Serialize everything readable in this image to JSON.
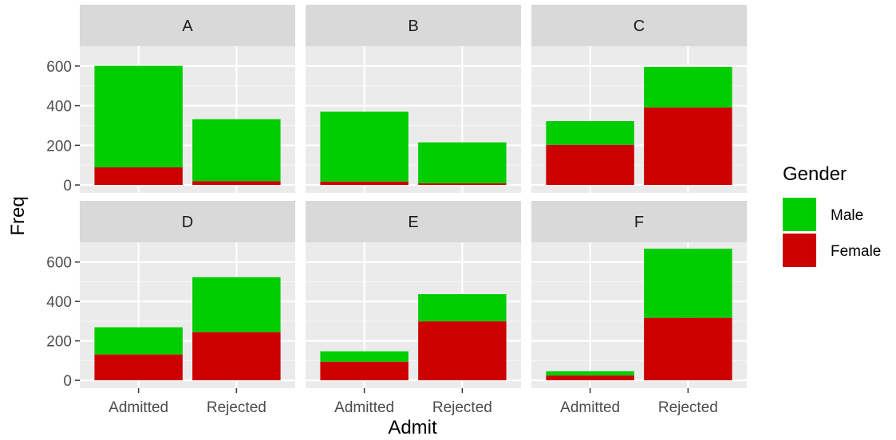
{
  "chart_data": {
    "type": "bar",
    "stacked": true,
    "faceted": true,
    "x_label": "Admit",
    "y_label": "Freq",
    "ylim": [
      -40,
      700
    ],
    "y_ticks": [
      0,
      200,
      400,
      600
    ],
    "categories": [
      "Admitted",
      "Rejected"
    ],
    "grid": true,
    "legend": {
      "title": "Gender",
      "position": "right",
      "entries": [
        {
          "name": "Male",
          "color": "#00cd00"
        },
        {
          "name": "Female",
          "color": "#cd0000"
        }
      ]
    },
    "facets": [
      {
        "name": "A",
        "series": [
          {
            "name": "Female",
            "values": [
              89,
              19
            ]
          },
          {
            "name": "Male",
            "values": [
              512,
              313
            ]
          }
        ]
      },
      {
        "name": "B",
        "series": [
          {
            "name": "Female",
            "values": [
              17,
              8
            ]
          },
          {
            "name": "Male",
            "values": [
              353,
              207
            ]
          }
        ]
      },
      {
        "name": "C",
        "series": [
          {
            "name": "Female",
            "values": [
              202,
              391
            ]
          },
          {
            "name": "Male",
            "values": [
              120,
              205
            ]
          }
        ]
      },
      {
        "name": "D",
        "series": [
          {
            "name": "Female",
            "values": [
              131,
              244
            ]
          },
          {
            "name": "Male",
            "values": [
              138,
              279
            ]
          }
        ]
      },
      {
        "name": "E",
        "series": [
          {
            "name": "Female",
            "values": [
              94,
              299
            ]
          },
          {
            "name": "Male",
            "values": [
              53,
              138
            ]
          }
        ]
      },
      {
        "name": "F",
        "series": [
          {
            "name": "Female",
            "values": [
              24,
              317
            ]
          },
          {
            "name": "Male",
            "values": [
              22,
              351
            ]
          }
        ]
      }
    ]
  }
}
